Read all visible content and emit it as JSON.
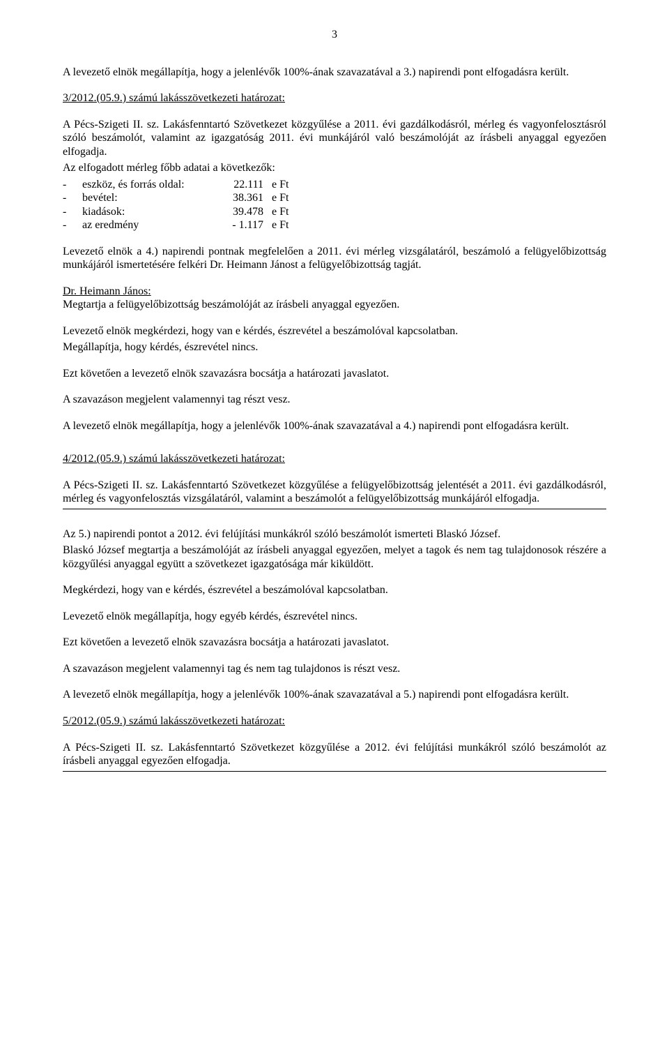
{
  "page_number": "3",
  "p1": "A levezető elnök megállapítja, hogy a jelenlévők 100%-ának szavazatával a 3.) napirendi pont elfogadásra került.",
  "res1_title": "3/2012.(05.9.) számú lakásszövetkezeti határozat:",
  "res1_body": "A Pécs-Szigeti II. sz. Lakásfenntartó Szövetkezet közgyűlése a 2011. évi gazdálkodásról, mérleg és vagyonfelosztásról szóló beszámolót, valamint az igazgatóság 2011. évi munkájáról való beszámolóját az írásbeli anyaggal egyezően elfogadja.",
  "list_intro": "Az elfogadott mérleg főbb adatai a következők:",
  "list": [
    {
      "label": "eszköz, és forrás oldal:",
      "value": "22.111",
      "unit": "e Ft"
    },
    {
      "label": "bevétel:",
      "value": "38.361",
      "unit": "e Ft"
    },
    {
      "label": "kiadások:",
      "value": "39.478",
      "unit": "e Ft"
    },
    {
      "label": "az eredmény",
      "value": "- 1.117",
      "unit": "e Ft"
    }
  ],
  "p2": "Levezető elnök a 4.) napirendi pontnak megfelelően a 2011. évi mérleg vizsgálatáról, beszámoló a felügyelőbizottság munkájáról ismertetésére felkéri Dr. Heimann Jánost  a felügyelőbizottság tagját.",
  "heimann_name": "Dr. Heimann János:",
  "heimann_line": "Megtartja a felügyelőbizottság beszámolóját az írásbeli anyaggal egyezően.",
  "p3a": "Levezető elnök megkérdezi, hogy van e kérdés, észrevétel a beszámolóval kapcsolatban.",
  "p3b": "Megállapítja, hogy kérdés, észrevétel nincs.",
  "p4": "Ezt követően a levezető elnök szavazásra bocsátja a határozati javaslatot.",
  "p5": "A szavazáson megjelent valamennyi tag részt vesz.",
  "p6": "A levezető elnök megállapítja, hogy a jelenlévők 100%-ának szavazatával a 4.) napirendi pont elfogadásra került.",
  "res2_title": "4/2012.(05.9.) számú lakásszövetkezeti határozat:",
  "res2_body": "A Pécs-Szigeti II. sz. Lakásfenntartó Szövetkezet közgyűlése a felügyelőbizottság jelentését a 2011. évi gazdálkodásról, mérleg és vagyonfelosztás vizsgálatáról, valamint a beszámolót a felügyelőbizottság munkájáról elfogadja.",
  "p7a": "Az 5.) napirendi pontot a 2012. évi felújítási munkákról szóló beszámolót ismerteti Blaskó József.",
  "p7b": "Blaskó József megtartja a beszámolóját az írásbeli anyaggal egyezően, melyet a tagok és nem tag tulajdonosok részére a közgyűlési anyaggal együtt a szövetkezet igazgatósága már kiküldött.",
  "p8": "Megkérdezi, hogy van e kérdés, észrevétel a beszámolóval kapcsolatban.",
  "p9": "Levezető elnök megállapítja, hogy egyéb kérdés, észrevétel nincs.",
  "p10": "Ezt követően a levezető elnök szavazásra bocsátja a határozati javaslatot.",
  "p11": "A szavazáson megjelent valamennyi tag és nem tag tulajdonos is részt vesz.",
  "p12": "A levezető elnök megállapítja, hogy a jelenlévők 100%-ának szavazatával a 5.) napirendi pont elfogadásra került.",
  "res3_title": "5/2012.(05.9.) számú lakásszövetkezeti határozat:",
  "res3_body": "A Pécs-Szigeti II. sz. Lakásfenntartó Szövetkezet közgyűlése a 2012. évi felújítási munkákról szóló beszámolót az írásbeli anyaggal egyezően elfogadja."
}
